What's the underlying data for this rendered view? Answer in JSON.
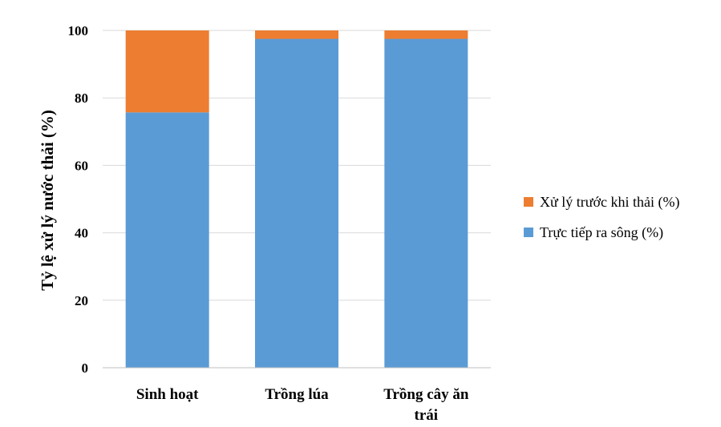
{
  "chart_data": {
    "type": "bar",
    "stacked": true,
    "categories": [
      "Sinh hoạt",
      "Trồng lúa",
      "Trồng cây ăn trái"
    ],
    "category_lines": [
      [
        "Sinh hoạt"
      ],
      [
        "Trồng lúa"
      ],
      [
        "Trồng cây ăn",
        "trái"
      ]
    ],
    "series": [
      {
        "name": "Trực tiếp ra sông (%)",
        "values": [
          75.7,
          97.5,
          97.5
        ],
        "color": "#5b9bd5"
      },
      {
        "name": "Xử lý trước khi thải (%)",
        "values": [
          24.3,
          2.5,
          2.5
        ],
        "color": "#ed7d31"
      }
    ],
    "legend_order": [
      1,
      0
    ],
    "legend_position": "right",
    "ylabel": "Tỷ lệ xử lý nước thải (%)",
    "xlabel": "",
    "ylim": [
      0,
      100
    ],
    "yticks": [
      0,
      20,
      40,
      60,
      80,
      100
    ],
    "grid": true,
    "grid_color": "#d9d9d9"
  }
}
